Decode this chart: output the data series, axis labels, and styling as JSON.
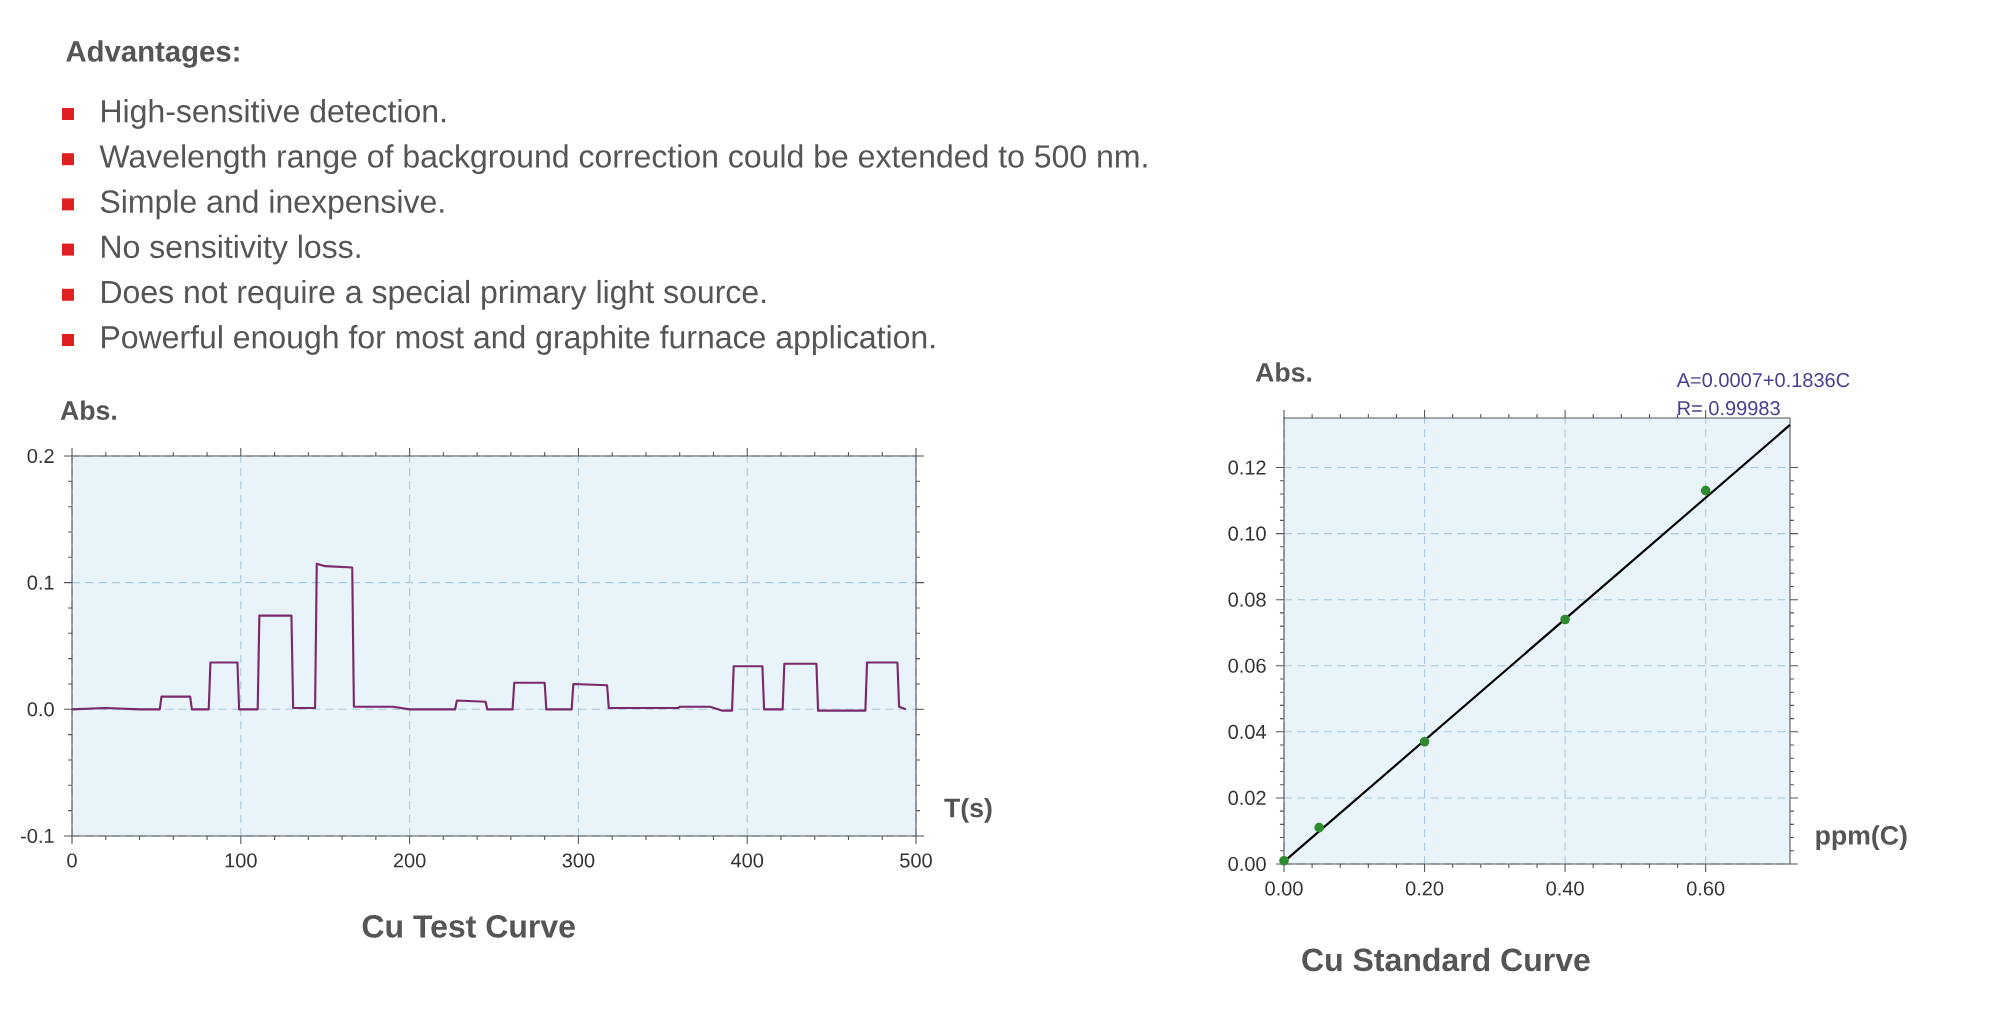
{
  "chart_data": [
    {
      "type": "other",
      "title": "Advantages:",
      "annotations": [
        "High-sensitive detection.",
        "Wavelength range of background correction could be extended to 500 nm.",
        "Simple and inexpensive.",
        "No sensitivity loss.",
        "Does not require a special primary light source.",
        "Powerful enough for most and graphite furnace application."
      ]
    },
    {
      "type": "line",
      "title": "Cu Test Curve",
      "xlabel": "T(s)",
      "ylabel": "Abs.",
      "color": "#7a2a6a",
      "grid": true,
      "xlim": [
        0,
        500
      ],
      "xticks": [
        0,
        100,
        200,
        300,
        400,
        500
      ],
      "ylim": [
        -0.1,
        0.2
      ],
      "yticks": [
        -0.1,
        {
          "value": 0,
          "label": "0.0"
        },
        0.1,
        0.2
      ],
      "x": [
        0,
        20,
        40,
        52,
        53,
        70,
        71,
        81,
        82,
        98,
        99,
        110,
        111,
        130,
        131,
        144,
        145,
        150,
        166,
        167,
        190,
        200,
        227,
        228,
        245,
        246,
        261,
        262,
        280,
        281,
        296,
        297,
        317,
        318,
        340,
        359,
        360,
        378,
        385,
        391,
        392,
        409,
        410,
        421,
        422,
        441,
        442,
        460,
        470,
        471,
        489,
        490,
        494
      ],
      "values": [
        0,
        0.001,
        0,
        0,
        0.01,
        0.01,
        0,
        0,
        0.037,
        0.037,
        0,
        0,
        0.074,
        0.074,
        0.001,
        0.001,
        0.115,
        0.113,
        0.112,
        0.002,
        0.002,
        0,
        0,
        0.007,
        0.006,
        0,
        0,
        0.021,
        0.021,
        0,
        0,
        0.02,
        0.019,
        0.001,
        0.001,
        0.001,
        0.002,
        0.002,
        -0.001,
        -0.001,
        0.034,
        0.034,
        0,
        0,
        0.036,
        0.036,
        -0.001,
        -0.001,
        -0.001,
        0.037,
        0.037,
        0.002,
        0
      ]
    },
    {
      "type": "scatter",
      "title": "Cu Standard Curve",
      "xlabel": "ppm(C)",
      "ylabel": "Abs.",
      "grid": true,
      "annotations": [
        "A=0.0007+0.1836C",
        "R= 0.99983"
      ],
      "xlim": [
        0,
        0.72
      ],
      "xticks": [
        {
          "value": 0,
          "label": "0.00"
        },
        {
          "value": 0.2,
          "label": "0.20"
        },
        {
          "value": 0.4,
          "label": "0.40"
        },
        {
          "value": 0.6,
          "label": "0.60"
        }
      ],
      "ylim": [
        0,
        0.135
      ],
      "yticks": [
        {
          "value": 0,
          "label": "0.00"
        },
        {
          "value": 0.02,
          "label": "0.02"
        },
        {
          "value": 0.04,
          "label": "0.04"
        },
        {
          "value": 0.06,
          "label": "0.06"
        },
        {
          "value": 0.08,
          "label": "0.08"
        },
        {
          "value": 0.1,
          "label": "0.10"
        },
        {
          "value": 0.12,
          "label": "0.12"
        }
      ],
      "series": [
        {
          "type": "line",
          "color": "#000000",
          "marker": "none",
          "x": [
            0,
            0.72
          ],
          "values": [
            0.0007,
            0.1329
          ]
        },
        {
          "type": "scatter",
          "color": "#2e8b2e",
          "marker": "circle",
          "x": [
            0,
            0.05,
            0.2,
            0.4,
            0.6
          ],
          "values": [
            0.001,
            0.011,
            0.037,
            0.074,
            0.113
          ]
        }
      ]
    }
  ]
}
